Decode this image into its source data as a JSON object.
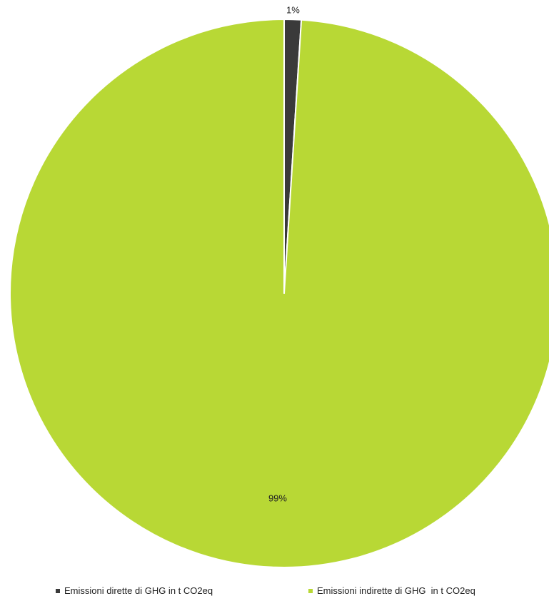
{
  "chart_data": {
    "type": "pie",
    "title": "",
    "labels": [
      "Emissioni dirette di GHG in t CO2eq",
      "Emissioni indirette di GHG  in t CO2eq"
    ],
    "values": [
      1,
      99
    ],
    "data_labels": [
      "1%",
      "99%"
    ],
    "colors": [
      "#3a3a3a",
      "#b8d835"
    ],
    "legend_position": "bottom",
    "start_angle_deg": 0,
    "direction": "clockwise"
  }
}
